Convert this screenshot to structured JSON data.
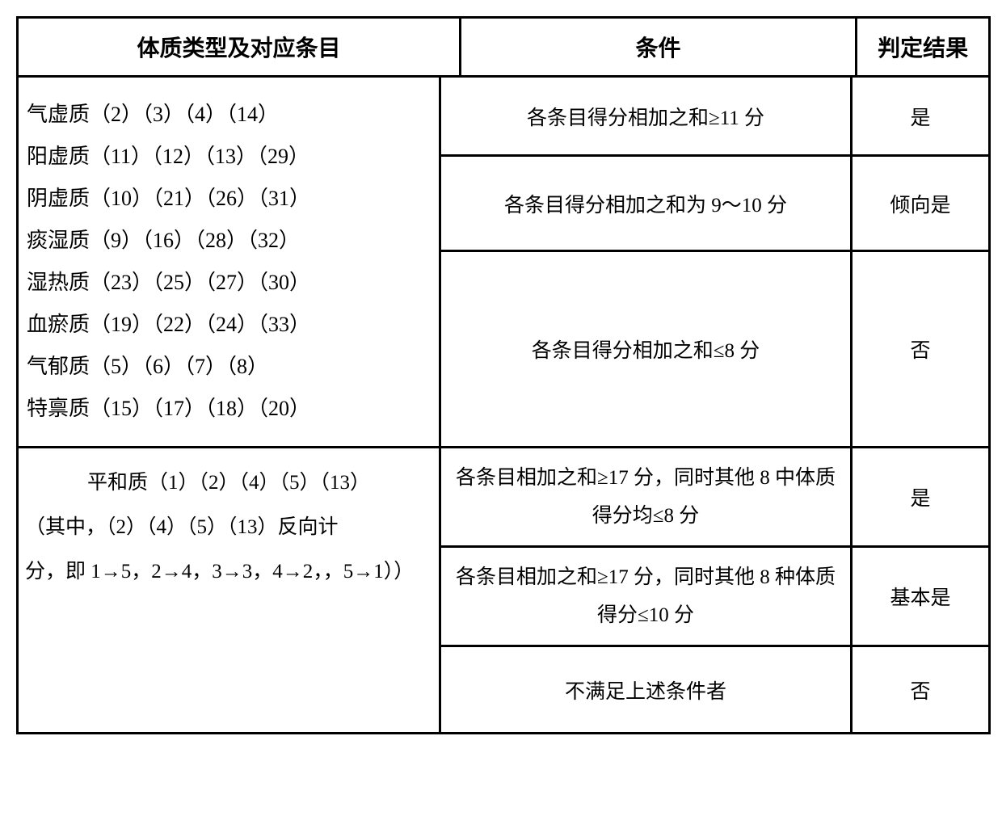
{
  "header": {
    "col1": "体质类型及对应条目",
    "col2": "条件",
    "col3": "判定结果"
  },
  "section1": {
    "types": [
      "气虚质（2）（3）（4）（14）",
      "阳虚质（11）（12）（13）（29）",
      "阴虚质（10）（21）（26）（31）",
      "痰湿质（9）（16）（28）（32）",
      "湿热质（23）（25）（27）（30）",
      "血瘀质（19）（22）（24）（33）",
      "气郁质（5）（6）（7）（8）",
      "特禀质（15）（17）（18）（20）"
    ],
    "rules": [
      {
        "condition": "各条目得分相加之和≥11 分",
        "result": "是"
      },
      {
        "condition": "各条目得分相加之和为 9～10 分",
        "result": "倾向是"
      },
      {
        "condition": "各条目得分相加之和≤8 分",
        "result": "否"
      }
    ]
  },
  "section2": {
    "type_line1": "平和质（1）（2）（4）（5）（13）",
    "type_line2": "（其中，（2）（4）（5）（13）反向计",
    "type_line3": "分，即 1→5，2→4，3→3，4→2，，5→1））",
    "rules": [
      {
        "condition": "各条目相加之和≥17 分，同时其他 8 中体质得分均≤8 分",
        "result": "是"
      },
      {
        "condition": "各条目相加之和≥17 分，同时其他 8 种体质得分≤10 分",
        "result": "基本是"
      },
      {
        "condition": "不满足上述条件者",
        "result": "否"
      }
    ]
  }
}
